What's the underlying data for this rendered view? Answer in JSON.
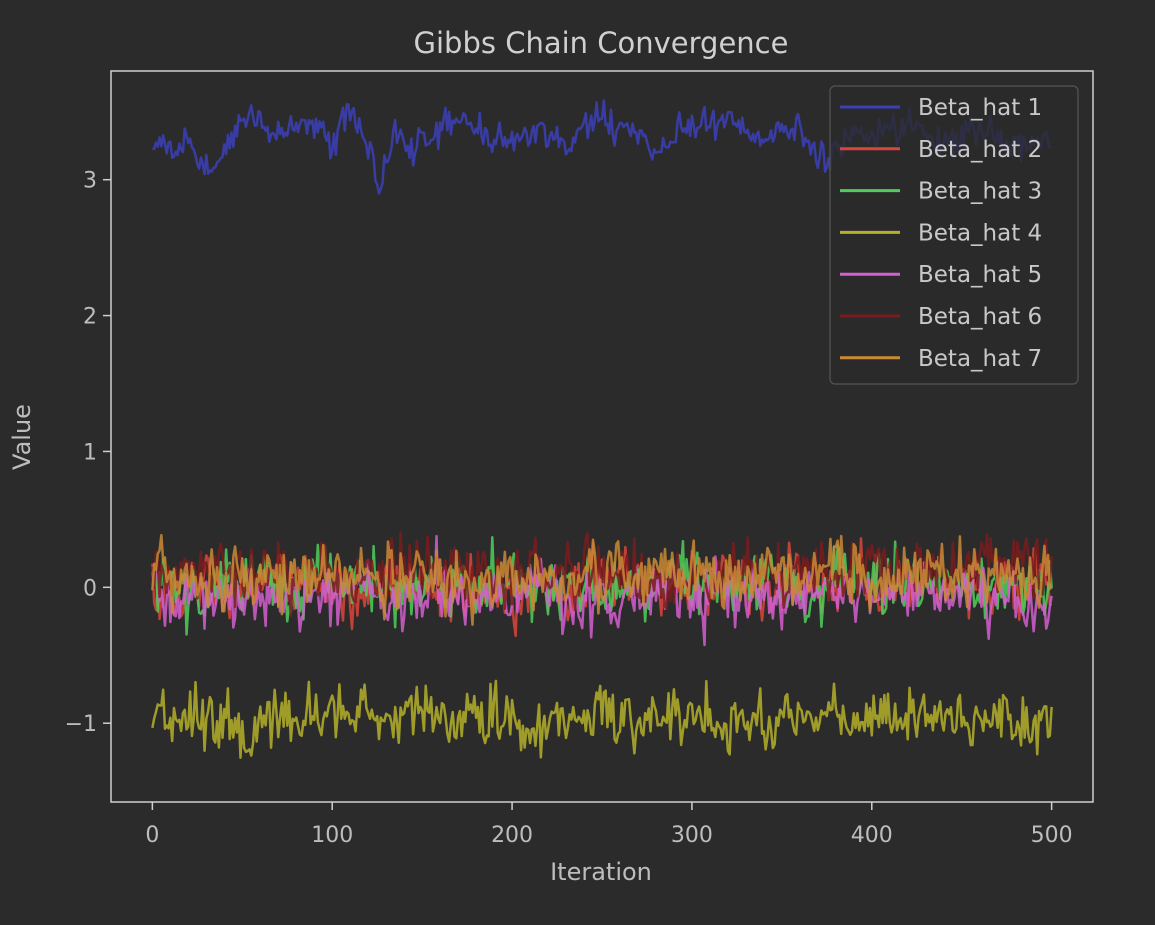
{
  "chart_data": {
    "type": "line",
    "title": "Gibbs Chain Convergence",
    "xlabel": "Iteration",
    "ylabel": "Value",
    "xlim": [
      -23,
      523
    ],
    "ylim": [
      -1.58,
      3.8
    ],
    "x_ticks": [
      0,
      100,
      200,
      300,
      400,
      500
    ],
    "x_tick_labels": [
      "0",
      "100",
      "200",
      "300",
      "400",
      "500"
    ],
    "y_ticks": [
      -1,
      0,
      1,
      2,
      3
    ],
    "y_tick_labels": [
      "−1",
      "0",
      "1",
      "2",
      "3"
    ],
    "grid": false,
    "legend_position": "top-right",
    "background": "#2b2b2b",
    "axes_edge_color": "#cfcfcf",
    "text_color": "#bdbdbd",
    "x_range": [
      0,
      500
    ],
    "series": [
      {
        "name": "Beta_hat 1",
        "color": "#3b3fb8",
        "mean": 3.3,
        "noise": 0.05,
        "drift": 0.03,
        "anchors": [
          [
            0,
            3.28
          ],
          [
            15,
            3.2
          ],
          [
            25,
            3.15
          ],
          [
            35,
            3.1
          ],
          [
            45,
            3.28
          ],
          [
            55,
            3.5
          ],
          [
            60,
            3.38
          ],
          [
            70,
            3.33
          ],
          [
            80,
            3.4
          ],
          [
            95,
            3.45
          ],
          [
            100,
            3.3
          ],
          [
            110,
            3.52
          ],
          [
            120,
            3.25
          ],
          [
            127,
            2.88
          ],
          [
            135,
            3.32
          ],
          [
            145,
            3.2
          ],
          [
            160,
            3.35
          ],
          [
            175,
            3.5
          ],
          [
            185,
            3.3
          ],
          [
            200,
            3.25
          ],
          [
            215,
            3.38
          ],
          [
            230,
            3.28
          ],
          [
            250,
            3.45
          ],
          [
            265,
            3.32
          ],
          [
            280,
            3.25
          ],
          [
            300,
            3.35
          ],
          [
            320,
            3.42
          ],
          [
            340,
            3.3
          ],
          [
            360,
            3.35
          ],
          [
            375,
            3.1
          ],
          [
            385,
            3.3
          ],
          [
            400,
            3.35
          ],
          [
            420,
            3.4
          ],
          [
            440,
            3.3
          ],
          [
            460,
            3.35
          ],
          [
            480,
            3.3
          ],
          [
            500,
            3.25
          ]
        ]
      },
      {
        "name": "Beta_hat 2",
        "color": "#d9453a",
        "mean": 0.0,
        "noise": 0.1,
        "drift": 0.04
      },
      {
        "name": "Beta_hat 3",
        "color": "#4fcf5a",
        "mean": 0.02,
        "noise": 0.11,
        "drift": 0.04
      },
      {
        "name": "Beta_hat 4",
        "color": "#b5b02a",
        "mean": -0.97,
        "noise": 0.1,
        "drift": 0.04
      },
      {
        "name": "Beta_hat 5",
        "color": "#d45fcf",
        "mean": -0.05,
        "noise": 0.1,
        "drift": 0.04
      },
      {
        "name": "Beta_hat 6",
        "color": "#7a1c1c",
        "mean": 0.12,
        "noise": 0.1,
        "drift": 0.04
      },
      {
        "name": "Beta_hat 7",
        "color": "#c98a35",
        "mean": 0.08,
        "noise": 0.1,
        "drift": 0.05
      }
    ]
  }
}
